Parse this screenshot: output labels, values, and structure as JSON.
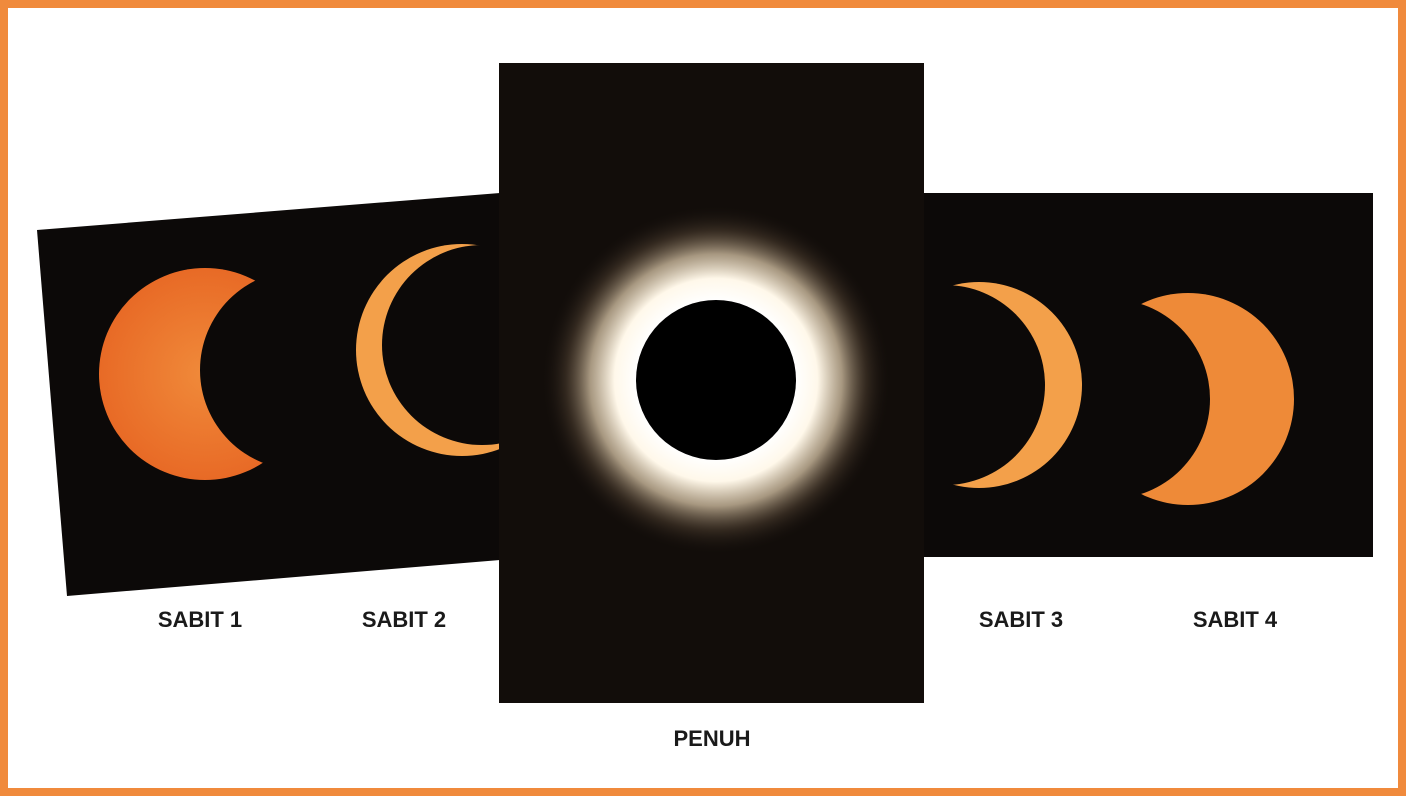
{
  "panels": [
    {
      "label": "SABIT 1"
    },
    {
      "label": "SABIT 2"
    },
    {
      "label": "PENUH"
    },
    {
      "label": "SABIT 3"
    },
    {
      "label": "SABIT 4"
    }
  ]
}
